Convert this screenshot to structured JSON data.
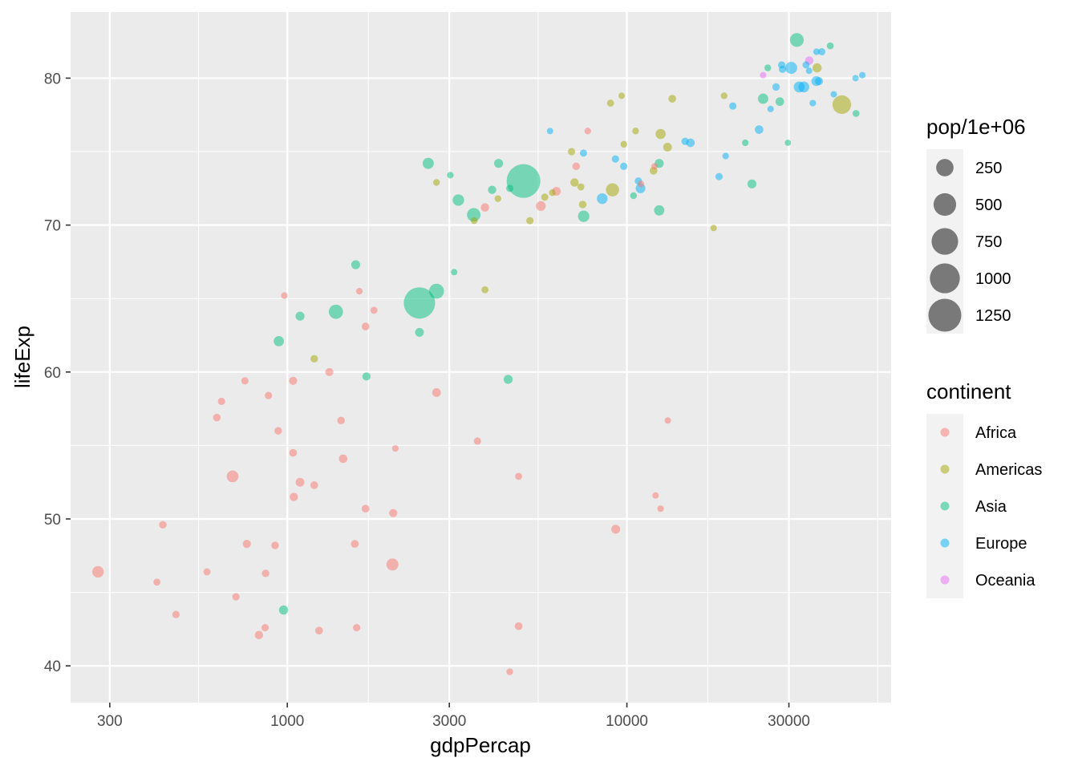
{
  "chart_data": {
    "type": "scatter",
    "xlabel": "gdpPercap",
    "ylabel": "lifeExp",
    "x_scale": "log10",
    "xlim": [
      230,
      60000
    ],
    "ylim": [
      37.5,
      84.5
    ],
    "x_ticks": [
      300,
      1000,
      3000,
      10000,
      30000
    ],
    "x_tick_labels": [
      "300",
      "1000",
      "3000",
      "10000",
      "30000"
    ],
    "y_ticks": [
      40,
      50,
      60,
      70,
      80
    ],
    "y_tick_labels": [
      "40",
      "50",
      "60",
      "70",
      "80"
    ],
    "grid": true,
    "point_alpha": 0.5,
    "size_legend": {
      "title": "pop/1e+06",
      "breaks": [
        250,
        500,
        750,
        1000,
        1250
      ],
      "labels": [
        "250",
        "500",
        "750",
        "1000",
        "1250"
      ]
    },
    "color_legend": {
      "title": "continent",
      "entries": [
        {
          "label": "Africa",
          "color": "#F8766D"
        },
        {
          "label": "Americas",
          "color": "#A3A500"
        },
        {
          "label": "Asia",
          "color": "#00BF7D"
        },
        {
          "label": "Europe",
          "color": "#00B0F6"
        },
        {
          "label": "Oceania",
          "color": "#E76BF3"
        }
      ]
    },
    "series": [
      {
        "name": "Africa",
        "color": "#F8766D",
        "points": [
          [
            277,
            46.4,
            70
          ],
          [
            413,
            45.7,
            8
          ],
          [
            430,
            49.6,
            12
          ],
          [
            470,
            43.5,
            10
          ],
          [
            580,
            46.4,
            8
          ],
          [
            620,
            56.9,
            12
          ],
          [
            640,
            58.0,
            10
          ],
          [
            690,
            52.9,
            76
          ],
          [
            706,
            44.7,
            10
          ],
          [
            750,
            59.4,
            10
          ],
          [
            760,
            48.3,
            18
          ],
          [
            825,
            42.1,
            20
          ],
          [
            860,
            42.6,
            10
          ],
          [
            863,
            46.3,
            12
          ],
          [
            880,
            58.4,
            10
          ],
          [
            920,
            48.2,
            12
          ],
          [
            940,
            56.0,
            12
          ],
          [
            980,
            65.2,
            6
          ],
          [
            1040,
            59.4,
            18
          ],
          [
            1040,
            54.5,
            14
          ],
          [
            1045,
            51.5,
            20
          ],
          [
            1090,
            52.5,
            25
          ],
          [
            1200,
            52.3,
            14
          ],
          [
            1240,
            42.4,
            14
          ],
          [
            1330,
            60.0,
            16
          ],
          [
            1440,
            56.7,
            12
          ],
          [
            1460,
            54.1,
            22
          ],
          [
            1580,
            48.3,
            14
          ],
          [
            1600,
            42.6,
            10
          ],
          [
            1630,
            65.5,
            5
          ],
          [
            1700,
            63.1,
            14
          ],
          [
            1700,
            50.7,
            14
          ],
          [
            1800,
            64.2,
            8
          ],
          [
            2040,
            46.9,
            82
          ],
          [
            2050,
            50.4,
            18
          ],
          [
            2080,
            54.8,
            5
          ],
          [
            2750,
            58.6,
            24
          ],
          [
            3630,
            55.3,
            10
          ],
          [
            3820,
            71.2,
            20
          ],
          [
            4520,
            39.6,
            6
          ],
          [
            4800,
            52.9,
            8
          ],
          [
            4800,
            42.7,
            14
          ],
          [
            5580,
            71.3,
            38
          ],
          [
            6200,
            72.3,
            24
          ],
          [
            7090,
            74.0,
            12
          ],
          [
            7670,
            76.4,
            5
          ],
          [
            9270,
            49.3,
            26
          ],
          [
            11000,
            72.8,
            4
          ],
          [
            12060,
            74.0,
            4
          ],
          [
            12150,
            51.6,
            4
          ],
          [
            12570,
            50.7,
            5
          ],
          [
            13200,
            56.7,
            4
          ]
        ]
      },
      {
        "name": "Americas",
        "color": "#A3A500",
        "points": [
          [
            1200,
            60.9,
            12
          ],
          [
            2750,
            72.9,
            6
          ],
          [
            3550,
            70.3,
            6
          ],
          [
            3820,
            65.6,
            8
          ],
          [
            4170,
            71.8,
            6
          ],
          [
            5180,
            70.3,
            10
          ],
          [
            5730,
            71.9,
            10
          ],
          [
            6030,
            72.2,
            6
          ],
          [
            6870,
            75.0,
            10
          ],
          [
            7010,
            72.9,
            20
          ],
          [
            7320,
            72.6,
            8
          ],
          [
            7410,
            71.4,
            12
          ],
          [
            8950,
            78.3,
            8
          ],
          [
            9070,
            72.4,
            109
          ],
          [
            9650,
            78.8,
            4
          ],
          [
            9800,
            75.5,
            6
          ],
          [
            10610,
            76.4,
            6
          ],
          [
            11980,
            73.7,
            14
          ],
          [
            12570,
            76.2,
            45
          ],
          [
            13170,
            75.3,
            25
          ],
          [
            13600,
            78.6,
            14
          ],
          [
            18010,
            69.8,
            4
          ],
          [
            19330,
            78.8,
            6
          ],
          [
            36320,
            80.7,
            30
          ],
          [
            42950,
            78.2,
            301
          ]
        ]
      },
      {
        "name": "Asia",
        "color": "#00BF7D",
        "points": [
          [
            975,
            43.8,
            30
          ],
          [
            944,
            62.1,
            47
          ],
          [
            1090,
            63.8,
            28
          ],
          [
            1390,
            64.1,
            140
          ],
          [
            1590,
            67.3,
            26
          ],
          [
            1710,
            59.7,
            18
          ],
          [
            2450,
            62.7,
            25
          ],
          [
            2450,
            64.7,
            1110
          ],
          [
            2600,
            74.2,
            65
          ],
          [
            2750,
            65.5,
            165
          ],
          [
            3020,
            73.4,
            5
          ],
          [
            3100,
            66.8,
            4
          ],
          [
            3190,
            71.7,
            70
          ],
          [
            3540,
            70.7,
            120
          ],
          [
            4010,
            72.4,
            20
          ],
          [
            4190,
            74.2,
            28
          ],
          [
            4470,
            59.5,
            28
          ],
          [
            4520,
            72.5,
            10
          ],
          [
            4960,
            73.0,
            1318
          ],
          [
            7460,
            70.6,
            69
          ],
          [
            10460,
            72.0,
            6
          ],
          [
            12450,
            74.2,
            28
          ],
          [
            12450,
            71.0,
            48
          ],
          [
            22320,
            75.6,
            5
          ],
          [
            23350,
            72.8,
            27
          ],
          [
            25190,
            78.6,
            49
          ],
          [
            28210,
            78.4,
            23
          ],
          [
            29800,
            75.6,
            3
          ],
          [
            31660,
            82.6,
            127
          ],
          [
            39720,
            82.2,
            7
          ],
          [
            47300,
            77.6,
            7
          ],
          [
            26000,
            80.7,
            6
          ]
        ]
      },
      {
        "name": "Europe",
        "color": "#00B0F6",
        "points": [
          [
            5940,
            76.4,
            4
          ],
          [
            7450,
            74.9,
            9
          ],
          [
            8460,
            71.8,
            55
          ],
          [
            9250,
            74.5,
            10
          ],
          [
            9790,
            74.0,
            10
          ],
          [
            10810,
            73.0,
            10
          ],
          [
            10970,
            72.5,
            38
          ],
          [
            14840,
            75.7,
            10
          ],
          [
            15390,
            75.6,
            22
          ],
          [
            18680,
            73.3,
            10
          ],
          [
            20510,
            78.1,
            10
          ],
          [
            19540,
            74.7,
            5
          ],
          [
            24510,
            76.5,
            22
          ],
          [
            26500,
            77.9,
            4
          ],
          [
            27500,
            79.4,
            11
          ],
          [
            28570,
            80.9,
            10
          ],
          [
            28720,
            80.6,
            9
          ],
          [
            30470,
            80.7,
            82
          ],
          [
            32170,
            79.4,
            60
          ],
          [
            33200,
            79.4,
            58
          ],
          [
            33690,
            80.9,
            8
          ],
          [
            35280,
            78.3,
            5
          ],
          [
            36130,
            79.8,
            40
          ],
          [
            36800,
            79.8,
            16
          ],
          [
            36180,
            81.8,
            5
          ],
          [
            37500,
            81.8,
            9
          ],
          [
            40670,
            78.9,
            4
          ],
          [
            47140,
            80.0,
            4
          ],
          [
            49360,
            80.2,
            5
          ],
          [
            34400,
            80.5,
            4
          ]
        ]
      },
      {
        "name": "Oceania",
        "color": "#E76BF3",
        "points": [
          [
            25190,
            80.2,
            4
          ],
          [
            34440,
            81.2,
            20
          ]
        ]
      }
    ]
  }
}
